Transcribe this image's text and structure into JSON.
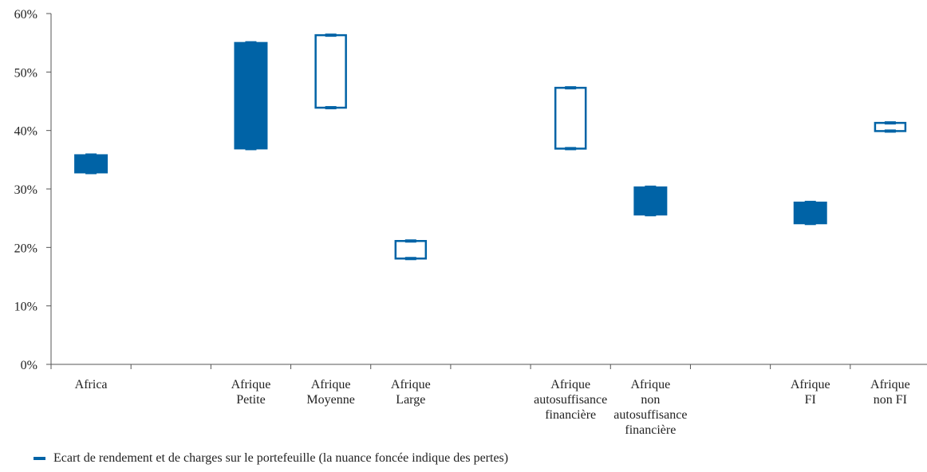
{
  "chart_data": {
    "type": "box",
    "title": "",
    "xlabel": "",
    "ylabel": "",
    "ylim": [
      0,
      60
    ],
    "yticks": [
      "0%",
      "10%",
      "20%",
      "30%",
      "40%",
      "50%",
      "60%"
    ],
    "categories": [
      [
        "Africa"
      ],
      [],
      [
        "Afrique",
        "Petite"
      ],
      [
        "Afrique",
        "Moyenne"
      ],
      [
        "Afrique",
        "Large"
      ],
      [],
      [
        "Afrique",
        "autosuffisance",
        "financière"
      ],
      [
        "Afrique",
        "non",
        "autosuffisance",
        "financière"
      ],
      [],
      [
        "Afrique",
        "FI"
      ],
      [
        "Afrique",
        "non FI"
      ]
    ],
    "boxes": [
      {
        "index": 0,
        "low": 32.8,
        "high": 35.8,
        "dark": true
      },
      {
        "index": 2,
        "low": 36.9,
        "high": 55.0,
        "dark": true
      },
      {
        "index": 3,
        "low": 43.9,
        "high": 56.3,
        "dark": false
      },
      {
        "index": 4,
        "low": 18.1,
        "high": 21.1,
        "dark": false
      },
      {
        "index": 6,
        "low": 36.9,
        "high": 47.3,
        "dark": false
      },
      {
        "index": 7,
        "low": 25.6,
        "high": 30.3,
        "dark": true
      },
      {
        "index": 9,
        "low": 24.1,
        "high": 27.7,
        "dark": true
      },
      {
        "index": 10,
        "low": 39.9,
        "high": 41.3,
        "dark": false
      }
    ],
    "grid": false,
    "legend_position": "bottom-left",
    "color": "#0063a6",
    "legend": {
      "label": "Ecart de rendement et de charges sur le portefeuille (la nuance foncée indique des pertes)"
    }
  }
}
